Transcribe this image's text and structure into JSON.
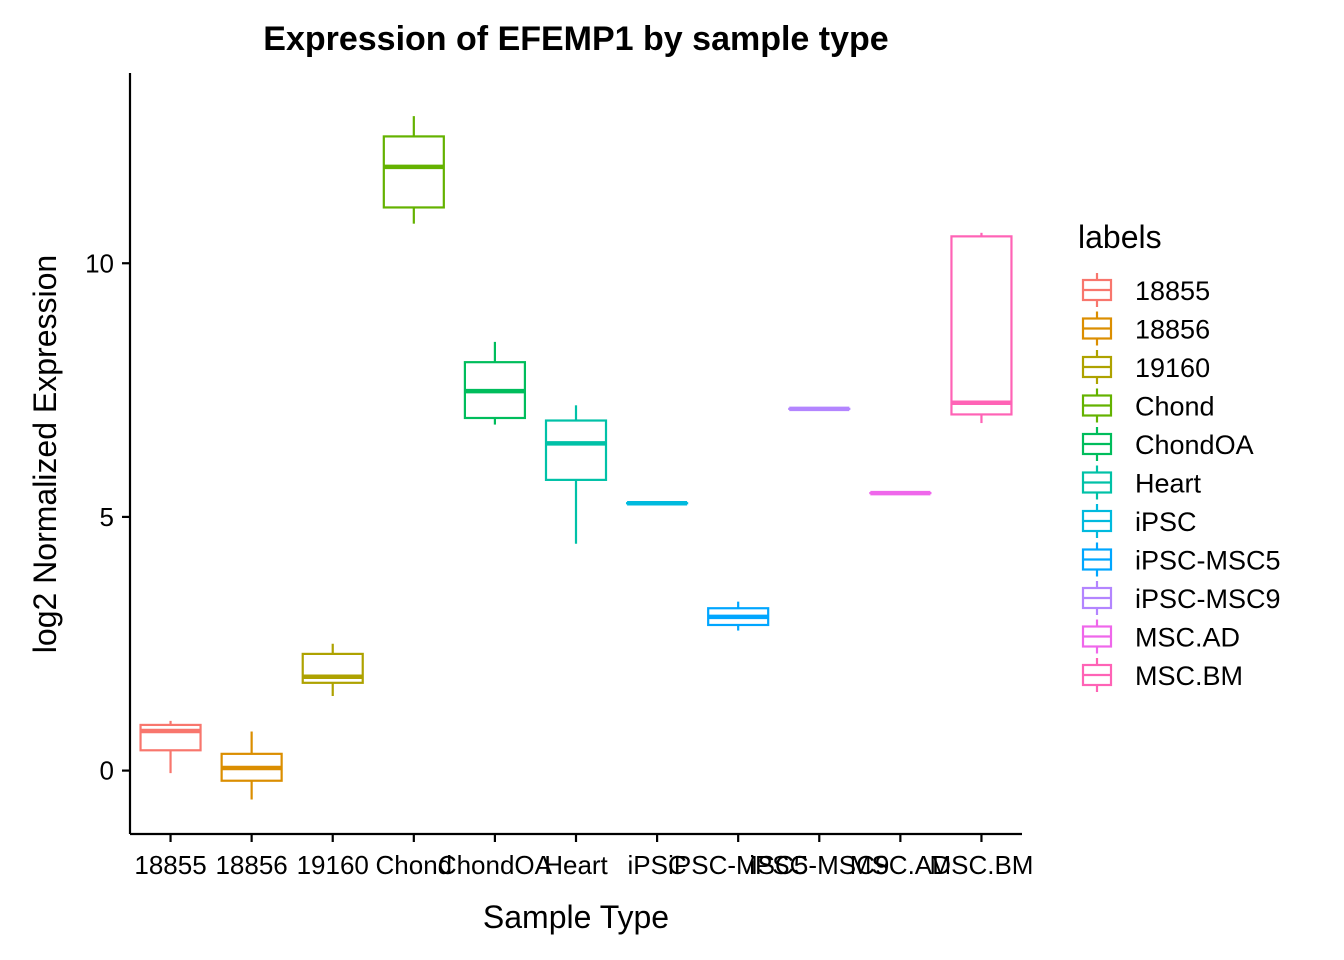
{
  "chart_data": {
    "type": "box",
    "title": "Expression of EFEMP1 by sample type",
    "xlabel": "Sample Type",
    "ylabel": "log2 Normalized Expression",
    "ylim": [
      -1.25,
      13.75
    ],
    "yticks": [
      0,
      5,
      10
    ],
    "grid": false,
    "legend": {
      "title": "labels",
      "position": "right"
    },
    "categories": [
      "18855",
      "18856",
      "19160",
      "Chond",
      "ChondOA",
      "Heart",
      "iPSC",
      "iPSC-MSC5",
      "iPSC-MSC9",
      "MSC.AD",
      "MSC.BM"
    ],
    "colors": [
      "#F8766D",
      "#DB8E00",
      "#AEA200",
      "#64B200",
      "#00BD5C",
      "#00C1A7",
      "#00BADE",
      "#00A6FF",
      "#B385FF",
      "#EF67EB",
      "#FF63B6"
    ],
    "boxes": [
      {
        "label": "18855",
        "min": -0.05,
        "q1": 0.4,
        "median": 0.78,
        "q3": 0.9,
        "max": 0.98
      },
      {
        "label": "18856",
        "min": -0.57,
        "q1": -0.2,
        "median": 0.05,
        "q3": 0.33,
        "max": 0.77
      },
      {
        "label": "19160",
        "min": 1.47,
        "q1": 1.73,
        "median": 1.85,
        "q3": 2.3,
        "max": 2.5
      },
      {
        "label": "Chond",
        "min": 10.78,
        "q1": 11.1,
        "median": 11.9,
        "q3": 12.5,
        "max": 12.9
      },
      {
        "label": "ChondOA",
        "min": 6.82,
        "q1": 6.95,
        "median": 7.48,
        "q3": 8.05,
        "max": 8.45
      },
      {
        "label": "Heart",
        "min": 4.47,
        "q1": 5.73,
        "median": 6.45,
        "q3": 6.9,
        "max": 7.2
      },
      {
        "label": "iPSC",
        "min": 5.27,
        "q1": 5.27,
        "median": 5.27,
        "q3": 5.27,
        "max": 5.27
      },
      {
        "label": "iPSC-MSC5",
        "min": 2.76,
        "q1": 2.87,
        "median": 3.03,
        "q3": 3.2,
        "max": 3.33
      },
      {
        "label": "iPSC-MSC9",
        "min": 7.13,
        "q1": 7.13,
        "median": 7.13,
        "q3": 7.13,
        "max": 7.13
      },
      {
        "label": "MSC.AD",
        "min": 5.47,
        "q1": 5.47,
        "median": 5.47,
        "q3": 5.47,
        "max": 5.47
      },
      {
        "label": "MSC.BM",
        "min": 6.85,
        "q1": 7.02,
        "median": 7.25,
        "q3": 10.53,
        "max": 10.6
      }
    ]
  }
}
